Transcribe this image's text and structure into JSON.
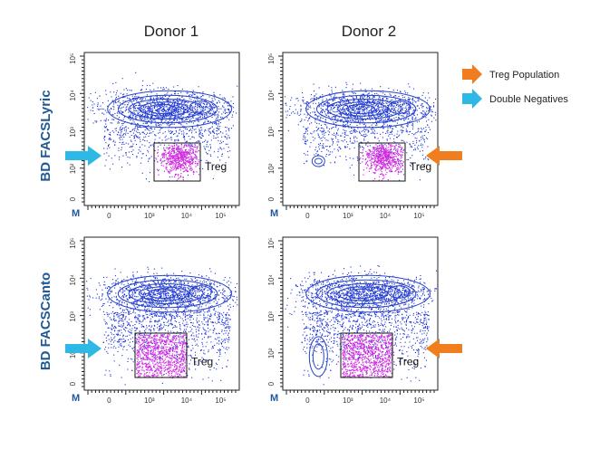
{
  "columns": [
    "Donor 1",
    "Donor 2"
  ],
  "rows": [
    "BD FACSLyric",
    "BD FACSCanto"
  ],
  "legend": [
    {
      "label": "Treg Population",
      "color": "#f07d1e",
      "icon": "arrow-right-icon"
    },
    {
      "label": "Double Negatives",
      "color": "#2db8e5",
      "icon": "arrow-right-icon"
    }
  ],
  "axis": {
    "origin_label": "M",
    "x_ticks": [
      "0",
      "10³",
      "10⁴",
      "10⁵"
    ],
    "y_ticks": [
      "10⁵",
      "10⁴",
      "10³",
      "10²",
      "0"
    ]
  },
  "colors": {
    "dots": "#1c33d8",
    "contour": "#2a46c8",
    "treg": "#d22ce0",
    "row_label": "#1f5a96",
    "treg_arrow": "#f07d1e",
    "dn_arrow": "#2db8e5"
  },
  "chart_data": [
    {
      "type": "scatter",
      "instrument": "BD FACSLyric",
      "donor": "Donor 1",
      "gate_label": "Treg",
      "arrows": [
        "Double Negatives"
      ]
    },
    {
      "type": "scatter",
      "instrument": "BD FACSLyric",
      "donor": "Donor 2",
      "gate_label": "Treg",
      "arrows": [
        "Treg Population"
      ]
    },
    {
      "type": "scatter",
      "instrument": "BD FACSCanto",
      "donor": "Donor 1",
      "gate_label": "Treg",
      "arrows": [
        "Double Negatives"
      ]
    },
    {
      "type": "scatter",
      "instrument": "BD FACSCanto",
      "donor": "Donor 2",
      "gate_label": "Treg",
      "arrows": [
        "Treg Population"
      ]
    }
  ]
}
